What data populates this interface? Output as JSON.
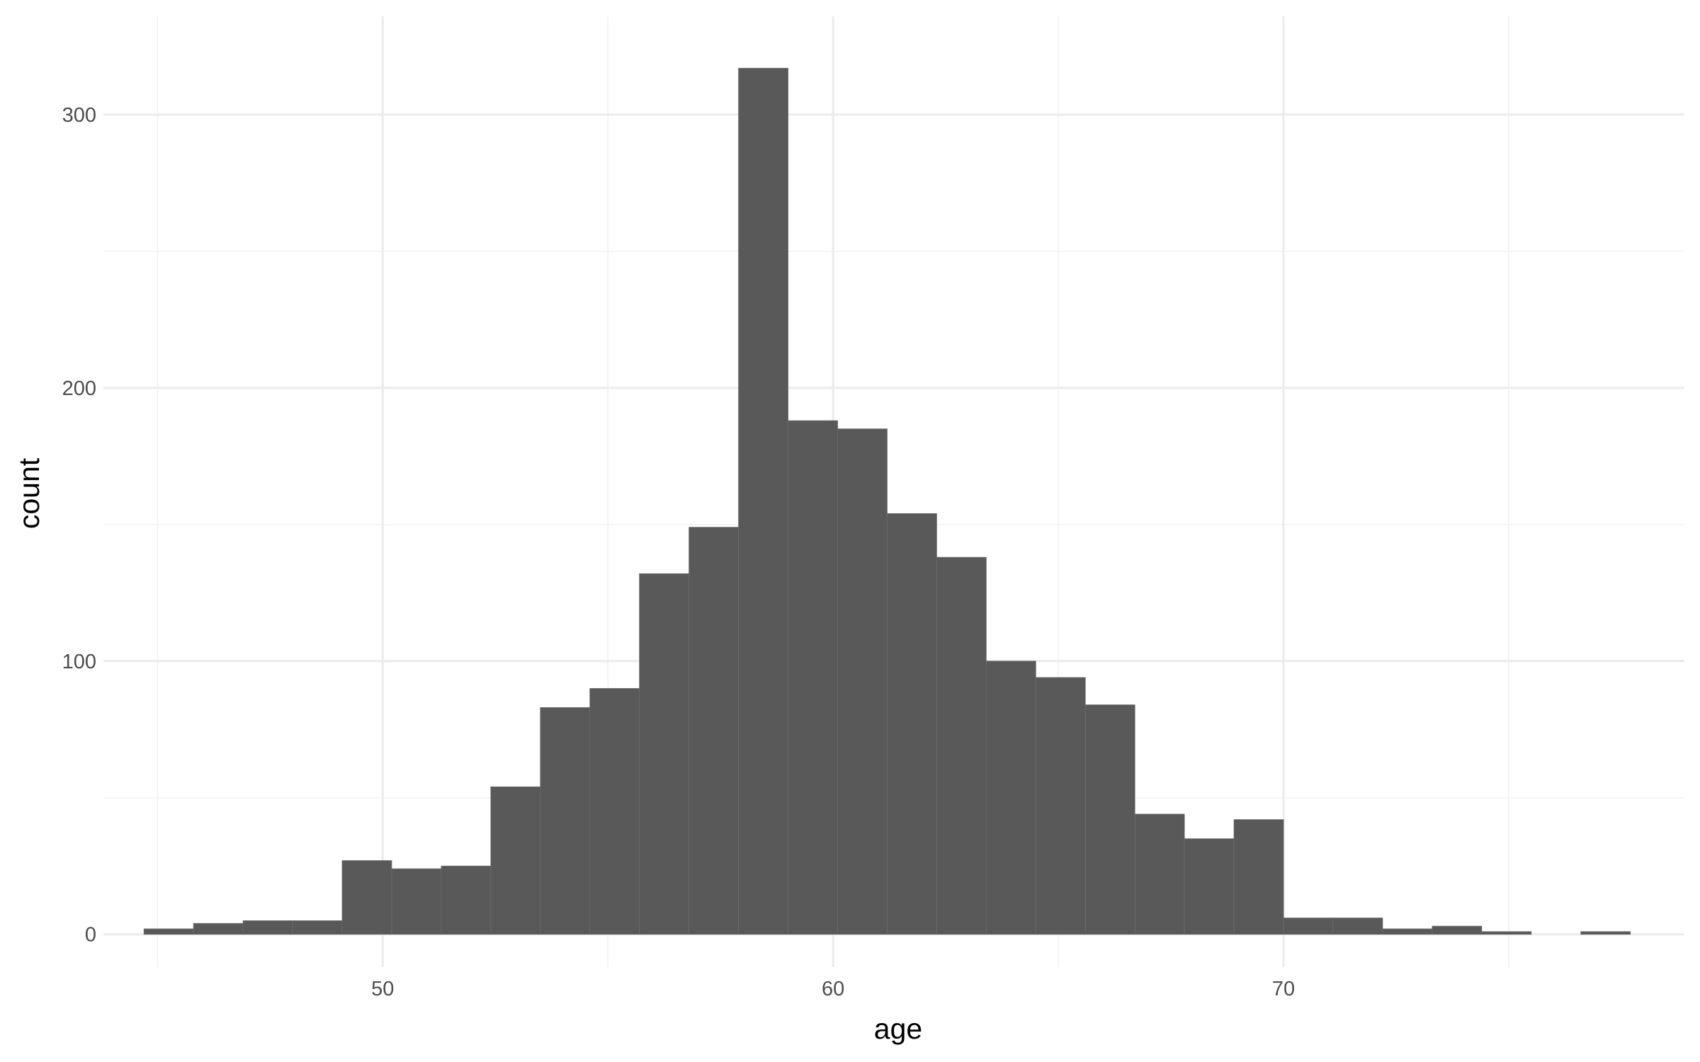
{
  "chart_data": {
    "type": "bar",
    "subtype": "histogram",
    "xlabel": "age",
    "ylabel": "count",
    "xlim": [
      43.8,
      78.9
    ],
    "ylim": [
      -12,
      336
    ],
    "x_ticks": [
      50,
      60,
      70
    ],
    "x_minor_ticks": [
      45,
      55,
      65,
      75
    ],
    "y_ticks": [
      0,
      100,
      200,
      300
    ],
    "y_minor_ticks": [
      50,
      150,
      250
    ],
    "grid": true,
    "colors": {
      "bar_fill": "#595959",
      "grid": "#ebebeb",
      "background": "#ffffff"
    },
    "bin_width": 1.1,
    "bins": [
      {
        "start": 44.7,
        "end": 45.8,
        "count": 2
      },
      {
        "start": 45.8,
        "end": 46.9,
        "count": 4
      },
      {
        "start": 46.9,
        "end": 48.0,
        "count": 5
      },
      {
        "start": 48.0,
        "end": 49.1,
        "count": 5
      },
      {
        "start": 49.1,
        "end": 50.2,
        "count": 27
      },
      {
        "start": 50.2,
        "end": 51.3,
        "count": 24
      },
      {
        "start": 51.3,
        "end": 52.4,
        "count": 25
      },
      {
        "start": 52.4,
        "end": 53.5,
        "count": 54
      },
      {
        "start": 53.5,
        "end": 54.6,
        "count": 83
      },
      {
        "start": 54.6,
        "end": 55.7,
        "count": 90
      },
      {
        "start": 55.7,
        "end": 56.8,
        "count": 132
      },
      {
        "start": 56.8,
        "end": 57.9,
        "count": 149
      },
      {
        "start": 57.9,
        "end": 59.0,
        "count": 317
      },
      {
        "start": 59.0,
        "end": 60.1,
        "count": 188
      },
      {
        "start": 60.1,
        "end": 61.2,
        "count": 185
      },
      {
        "start": 61.2,
        "end": 62.3,
        "count": 154
      },
      {
        "start": 62.3,
        "end": 63.4,
        "count": 138
      },
      {
        "start": 63.4,
        "end": 64.5,
        "count": 100
      },
      {
        "start": 64.5,
        "end": 65.6,
        "count": 94
      },
      {
        "start": 65.6,
        "end": 66.7,
        "count": 84
      },
      {
        "start": 66.7,
        "end": 67.8,
        "count": 44
      },
      {
        "start": 67.8,
        "end": 68.9,
        "count": 35
      },
      {
        "start": 68.9,
        "end": 70.0,
        "count": 42
      },
      {
        "start": 70.0,
        "end": 71.1,
        "count": 6
      },
      {
        "start": 71.1,
        "end": 72.2,
        "count": 6
      },
      {
        "start": 72.2,
        "end": 73.3,
        "count": 2
      },
      {
        "start": 73.3,
        "end": 74.4,
        "count": 3
      },
      {
        "start": 74.4,
        "end": 75.5,
        "count": 1
      },
      {
        "start": 75.5,
        "end": 76.6,
        "count": 0
      },
      {
        "start": 76.6,
        "end": 77.7,
        "count": 1
      }
    ]
  }
}
